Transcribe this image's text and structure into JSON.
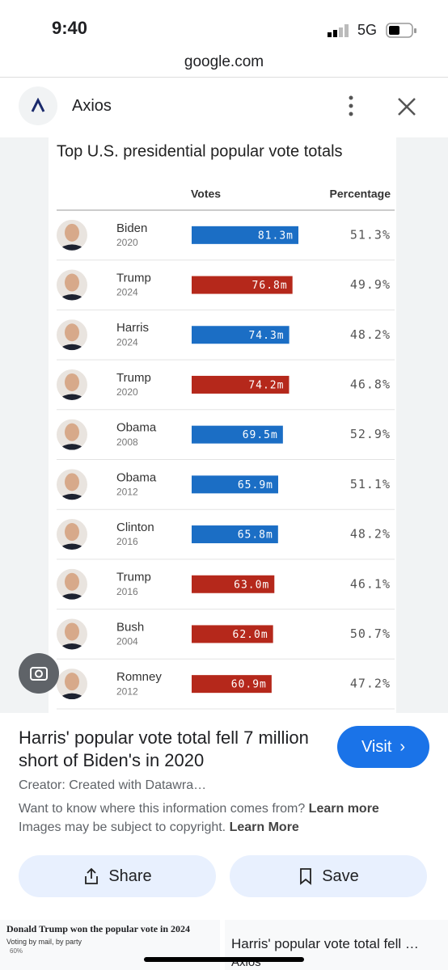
{
  "status_bar": {
    "time": "9:40",
    "network": "5G"
  },
  "browser": {
    "url": "google.com"
  },
  "source": {
    "name": "Axios"
  },
  "chart_data": {
    "type": "bar",
    "title": "Top U.S. presidential popular vote totals",
    "headers": [
      "Votes",
      "Percentage"
    ],
    "categories": [
      "Biden",
      "Trump",
      "Harris",
      "Trump",
      "Obama",
      "Obama",
      "Clinton",
      "Trump",
      "Bush",
      "Romney"
    ],
    "years": [
      "2020",
      "2024",
      "2024",
      "2020",
      "2008",
      "2012",
      "2016",
      "2016",
      "2004",
      "2012"
    ],
    "values": [
      81.3,
      76.8,
      74.3,
      74.2,
      69.5,
      65.9,
      65.8,
      63.0,
      62.0,
      60.9
    ],
    "value_labels": [
      "81.3m",
      "76.8m",
      "74.3m",
      "74.2m",
      "69.5m",
      "65.9m",
      "65.8m",
      "63.0m",
      "62.0m",
      "60.9m"
    ],
    "colors": [
      "#1b6ec5",
      "#b5281b",
      "#1b6ec5",
      "#b5281b",
      "#1b6ec5",
      "#1b6ec5",
      "#1b6ec5",
      "#b5281b",
      "#b5281b",
      "#b5281b"
    ],
    "percentages": [
      "51.3%",
      "49.9%",
      "48.2%",
      "46.8%",
      "52.9%",
      "51.1%",
      "48.2%",
      "46.1%",
      "50.7%",
      "47.2%"
    ]
  },
  "result": {
    "title": "Harris' popular vote total fell 7 million short of Biden's in 2020",
    "visit": "Visit",
    "creator": "Creator: Created with Datawra…",
    "info_question": "Want to know where this information comes from?",
    "info_link": "Learn more",
    "copyright": "Images may be subject to copyright.",
    "copyright_link": "Learn More",
    "share": "Share",
    "save": "Save"
  },
  "related": {
    "left_title": "Donald Trump won the popular vote in 2024",
    "left_subtitle": "Voting by mail, by party",
    "left_tick": "60%",
    "right_title": "Harris' popular vote total fell …",
    "right_source": "Axios"
  }
}
